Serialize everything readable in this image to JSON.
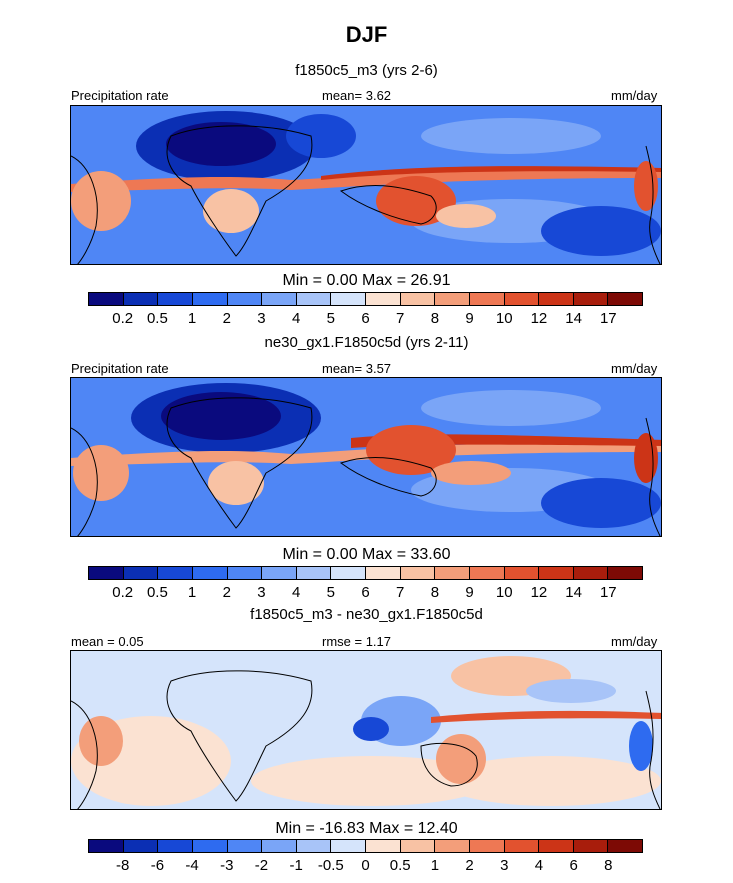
{
  "title": "DJF",
  "panels": [
    {
      "subtitle": "f1850c5_m3 (yrs 2-6)",
      "left_label": "Precipitation rate",
      "center_label": "mean=   3.62",
      "right_label": "mm/day",
      "minmax": "Min =   0.00 Max =  26.91",
      "kind": "abs"
    },
    {
      "subtitle": "ne30_gx1.F1850c5d (yrs 2-11)",
      "left_label": "Precipitation rate",
      "center_label": "mean=   3.57",
      "right_label": "mm/day",
      "minmax": "Min =   0.00 Max =  33.60",
      "kind": "abs"
    },
    {
      "subtitle": "f1850c5_m3 - ne30_gx1.F1850c5d",
      "left_label": "mean =   0.05",
      "center_label": "rmse =   1.17",
      "right_label": "mm/day",
      "minmax": "Min = -16.83 Max =  12.40",
      "kind": "diff"
    }
  ],
  "chart_data": [
    {
      "type": "heatmap",
      "title": "f1850c5_m3 (yrs 2-6)",
      "variable": "Precipitation rate",
      "units": "mm/day",
      "mean": 3.62,
      "min": 0.0,
      "max": 26.91,
      "levels": [
        "0.2",
        "0.5",
        "1",
        "2",
        "3",
        "4",
        "5",
        "6",
        "7",
        "8",
        "9",
        "10",
        "12",
        "14",
        "17"
      ],
      "colors": [
        "#0a0a7e",
        "#0b2fb4",
        "#1748d6",
        "#2e6bf0",
        "#4f86f5",
        "#7aa5f7",
        "#a8c4f8",
        "#d5e4fb",
        "#fbe2d2",
        "#f8c2a4",
        "#f39e7a",
        "#ee7854",
        "#e2522f",
        "#cc3417",
        "#a81d0c",
        "#7d0a05"
      ]
    },
    {
      "type": "heatmap",
      "title": "ne30_gx1.F1850c5d (yrs 2-11)",
      "variable": "Precipitation rate",
      "units": "mm/day",
      "mean": 3.57,
      "min": 0.0,
      "max": 33.6,
      "levels": [
        "0.2",
        "0.5",
        "1",
        "2",
        "3",
        "4",
        "5",
        "6",
        "7",
        "8",
        "9",
        "10",
        "12",
        "14",
        "17"
      ],
      "colors": [
        "#0a0a7e",
        "#0b2fb4",
        "#1748d6",
        "#2e6bf0",
        "#4f86f5",
        "#7aa5f7",
        "#a8c4f8",
        "#d5e4fb",
        "#fbe2d2",
        "#f8c2a4",
        "#f39e7a",
        "#ee7854",
        "#e2522f",
        "#cc3417",
        "#a81d0c",
        "#7d0a05"
      ]
    },
    {
      "type": "heatmap",
      "title": "f1850c5_m3 - ne30_gx1.F1850c5d",
      "units": "mm/day",
      "mean": 0.05,
      "rmse": 1.17,
      "min": -16.83,
      "max": 12.4,
      "levels": [
        "-8",
        "-6",
        "-4",
        "-3",
        "-2",
        "-1",
        "-0.5",
        "0",
        "0.5",
        "1",
        "2",
        "3",
        "4",
        "6",
        "8"
      ],
      "colors": [
        "#0a0a7e",
        "#0b2fb4",
        "#1748d6",
        "#2e6bf0",
        "#4f86f5",
        "#7aa5f7",
        "#a8c4f8",
        "#d5e4fb",
        "#fbe2d2",
        "#f8c2a4",
        "#f39e7a",
        "#ee7854",
        "#e2522f",
        "#cc3417",
        "#a81d0c",
        "#7d0a05"
      ]
    }
  ]
}
